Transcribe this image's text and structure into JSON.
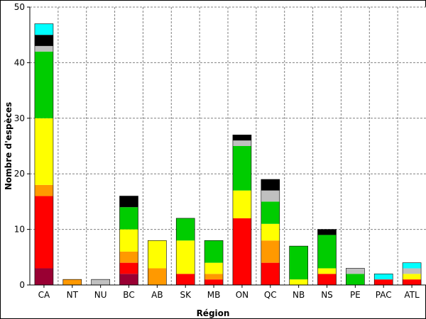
{
  "chart_data": {
    "type": "bar",
    "stacked": true,
    "xlabel": "Région",
    "ylabel": "Nombre d'espèces",
    "ylim": [
      0,
      50
    ],
    "yticks": [
      0,
      10,
      20,
      30,
      40,
      50
    ],
    "grid": true,
    "categories": [
      "CA",
      "NT",
      "NU",
      "BC",
      "AB",
      "SK",
      "MB",
      "ON",
      "QC",
      "NB",
      "NS",
      "PE",
      "PAC",
      "ATL"
    ],
    "series": [
      {
        "color": "#990033",
        "values": [
          3,
          0,
          0,
          2,
          0,
          0,
          0,
          0,
          0,
          0,
          0,
          0,
          0,
          0
        ]
      },
      {
        "color": "#ff0000",
        "values": [
          13,
          0,
          0,
          2,
          0,
          2,
          1,
          12,
          4,
          0,
          2,
          0,
          1,
          1
        ]
      },
      {
        "color": "#ff9900",
        "values": [
          2,
          1,
          0,
          2,
          3,
          0,
          1,
          0,
          4,
          0,
          0,
          0,
          0,
          0
        ]
      },
      {
        "color": "#ffff00",
        "values": [
          12,
          0,
          0,
          4,
          5,
          6,
          2,
          5,
          3,
          1,
          1,
          0,
          0,
          1
        ]
      },
      {
        "color": "#00cc00",
        "values": [
          12,
          0,
          0,
          4,
          0,
          4,
          4,
          8,
          4,
          6,
          6,
          2,
          0,
          0
        ]
      },
      {
        "color": "#c0c0c0",
        "values": [
          1,
          0,
          1,
          0,
          0,
          0,
          0,
          1,
          2,
          0,
          0,
          1,
          0,
          1
        ]
      },
      {
        "color": "#000000",
        "values": [
          2,
          0,
          0,
          2,
          0,
          0,
          0,
          1,
          2,
          0,
          1,
          0,
          0,
          0
        ]
      },
      {
        "color": "#00ffff",
        "values": [
          2,
          0,
          0,
          0,
          0,
          0,
          0,
          0,
          0,
          0,
          0,
          0,
          1,
          1
        ]
      }
    ]
  }
}
